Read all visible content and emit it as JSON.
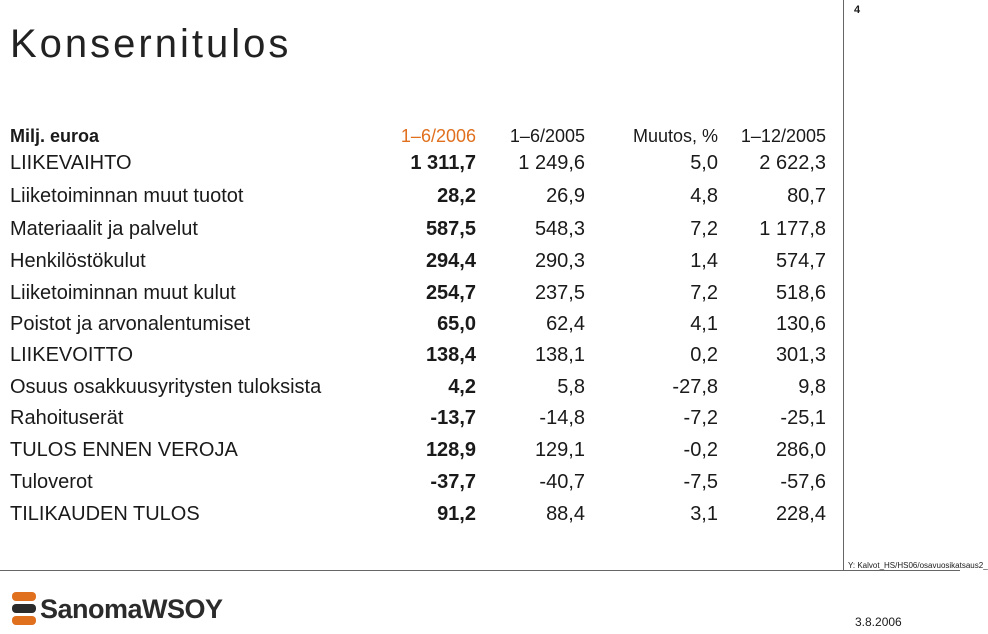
{
  "title": "Konsernitulos",
  "page_number": "4",
  "table": {
    "header": [
      "Milj. euroa",
      "1–6/2006",
      "1–6/2005",
      "Muutos, %",
      "1–12/2005"
    ],
    "rows": [
      [
        "LIIKEVAIHTO",
        "1 311,7",
        "1 249,6",
        "5,0",
        "2 622,3"
      ],
      [
        "Liiketoiminnan muut tuotot",
        "28,2",
        "26,9",
        "4,8",
        "80,7"
      ],
      [
        "Materiaalit ja palvelut",
        "587,5",
        "548,3",
        "7,2",
        "1 177,8"
      ],
      [
        "Henkilöstökulut",
        "294,4",
        "290,3",
        "1,4",
        "574,7"
      ],
      [
        "Liiketoiminnan muut kulut",
        "254,7",
        "237,5",
        "7,2",
        "518,6"
      ],
      [
        "Poistot ja arvonalentumiset",
        "65,0",
        "62,4",
        "4,1",
        "130,6"
      ],
      [
        "LIIKEVOITTO",
        "138,4",
        "138,1",
        "0,2",
        "301,3"
      ],
      [
        "Osuus osakkuusyritysten tuloksista",
        "4,2",
        "5,8",
        "-27,8",
        "9,8"
      ],
      [
        "Rahoituserät",
        "-13,7",
        "-14,8",
        "-7,2",
        "-25,1"
      ],
      [
        "TULOS ENNEN VEROJA",
        "128,9",
        "129,1",
        "-0,2",
        "286,0"
      ],
      [
        "Tuloverot",
        "-37,7",
        "-40,7",
        "-7,5",
        "-57,6"
      ],
      [
        "TILIKAUDEN TULOS",
        "91,2",
        "88,4",
        "3,1",
        "228,4"
      ]
    ]
  },
  "footer": {
    "path": "Y: Kalvot_HS/HS06/osavuosikatsaus2_",
    "logo": "SanomaWSOY",
    "date": "3.8.2006"
  }
}
